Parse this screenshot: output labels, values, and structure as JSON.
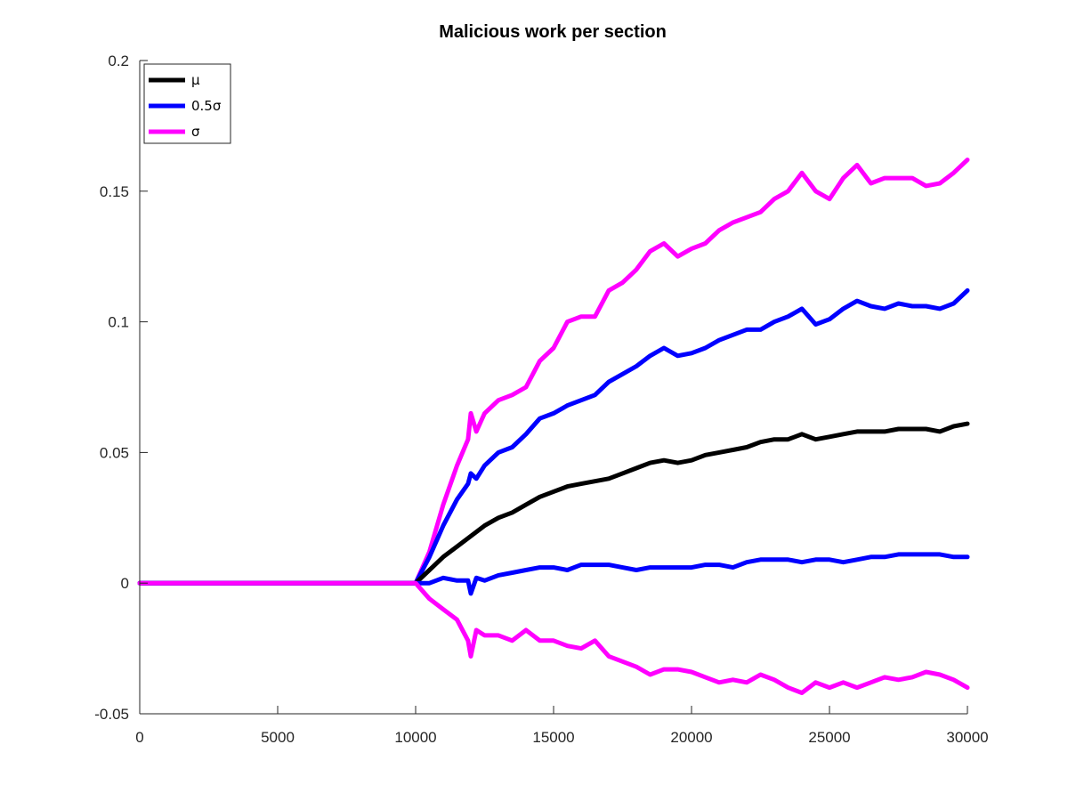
{
  "chart_data": {
    "type": "line",
    "title": "Malicious work per section",
    "xlabel": "",
    "ylabel": "",
    "xlim": [
      0,
      30000
    ],
    "ylim": [
      -0.05,
      0.2
    ],
    "xticks": [
      0,
      5000,
      10000,
      15000,
      20000,
      25000,
      30000
    ],
    "xtick_labels": [
      "0",
      "5000",
      "10000",
      "15000",
      "20000",
      "25000",
      "30000"
    ],
    "yticks": [
      -0.05,
      0,
      0.05,
      0.1,
      0.15,
      0.2
    ],
    "ytick_labels": [
      "-0.05",
      "0",
      "0.05",
      "0.1",
      "0.15",
      "0.2"
    ],
    "grid": false,
    "legend_position": "top-left",
    "legend": [
      {
        "label": "μ",
        "color": "#000000"
      },
      {
        "label": "0.5σ",
        "color": "#0000ff"
      },
      {
        "label": "σ",
        "color": "#ff00ff"
      }
    ],
    "series": [
      {
        "name": "σ",
        "color": "#ff00ff",
        "points": [
          [
            0,
            0
          ],
          [
            10000,
            0
          ],
          [
            10500,
            0.012
          ],
          [
            11000,
            0.03
          ],
          [
            11500,
            0.045
          ],
          [
            11900,
            0.055
          ],
          [
            12000,
            0.065
          ],
          [
            12200,
            0.058
          ],
          [
            12500,
            0.065
          ],
          [
            13000,
            0.07
          ],
          [
            13500,
            0.072
          ],
          [
            14000,
            0.075
          ],
          [
            14500,
            0.085
          ],
          [
            15000,
            0.09
          ],
          [
            15500,
            0.1
          ],
          [
            16000,
            0.102
          ],
          [
            16500,
            0.102
          ],
          [
            17000,
            0.112
          ],
          [
            17500,
            0.115
          ],
          [
            18000,
            0.12
          ],
          [
            18500,
            0.127
          ],
          [
            19000,
            0.13
          ],
          [
            19500,
            0.125
          ],
          [
            20000,
            0.128
          ],
          [
            20500,
            0.13
          ],
          [
            21000,
            0.135
          ],
          [
            21500,
            0.138
          ],
          [
            22000,
            0.14
          ],
          [
            22500,
            0.142
          ],
          [
            23000,
            0.147
          ],
          [
            23500,
            0.15
          ],
          [
            24000,
            0.157
          ],
          [
            24500,
            0.15
          ],
          [
            25000,
            0.147
          ],
          [
            25500,
            0.155
          ],
          [
            26000,
            0.16
          ],
          [
            26500,
            0.153
          ],
          [
            27000,
            0.155
          ],
          [
            27500,
            0.155
          ],
          [
            28000,
            0.155
          ],
          [
            28500,
            0.152
          ],
          [
            29000,
            0.153
          ],
          [
            29500,
            0.157
          ],
          [
            30000,
            0.162
          ]
        ]
      },
      {
        "name": "0.5σ",
        "color": "#0000ff",
        "points": [
          [
            0,
            0
          ],
          [
            10000,
            0
          ],
          [
            10500,
            0.01
          ],
          [
            11000,
            0.022
          ],
          [
            11500,
            0.032
          ],
          [
            11900,
            0.038
          ],
          [
            12000,
            0.042
          ],
          [
            12200,
            0.04
          ],
          [
            12500,
            0.045
          ],
          [
            13000,
            0.05
          ],
          [
            13500,
            0.052
          ],
          [
            14000,
            0.057
          ],
          [
            14500,
            0.063
          ],
          [
            15000,
            0.065
          ],
          [
            15500,
            0.068
          ],
          [
            16000,
            0.07
          ],
          [
            16500,
            0.072
          ],
          [
            17000,
            0.077
          ],
          [
            17500,
            0.08
          ],
          [
            18000,
            0.083
          ],
          [
            18500,
            0.087
          ],
          [
            19000,
            0.09
          ],
          [
            19500,
            0.087
          ],
          [
            20000,
            0.088
          ],
          [
            20500,
            0.09
          ],
          [
            21000,
            0.093
          ],
          [
            21500,
            0.095
          ],
          [
            22000,
            0.097
          ],
          [
            22500,
            0.097
          ],
          [
            23000,
            0.1
          ],
          [
            23500,
            0.102
          ],
          [
            24000,
            0.105
          ],
          [
            24500,
            0.099
          ],
          [
            25000,
            0.101
          ],
          [
            25500,
            0.105
          ],
          [
            26000,
            0.108
          ],
          [
            26500,
            0.106
          ],
          [
            27000,
            0.105
          ],
          [
            27500,
            0.107
          ],
          [
            28000,
            0.106
          ],
          [
            28500,
            0.106
          ],
          [
            29000,
            0.105
          ],
          [
            29500,
            0.107
          ],
          [
            30000,
            0.112
          ]
        ]
      },
      {
        "name": "μ",
        "color": "#000000",
        "points": [
          [
            0,
            0
          ],
          [
            10000,
            0
          ],
          [
            10500,
            0.005
          ],
          [
            11000,
            0.01
          ],
          [
            11500,
            0.014
          ],
          [
            12000,
            0.018
          ],
          [
            12500,
            0.022
          ],
          [
            13000,
            0.025
          ],
          [
            13500,
            0.027
          ],
          [
            14000,
            0.03
          ],
          [
            14500,
            0.033
          ],
          [
            15000,
            0.035
          ],
          [
            15500,
            0.037
          ],
          [
            16000,
            0.038
          ],
          [
            16500,
            0.039
          ],
          [
            17000,
            0.04
          ],
          [
            17500,
            0.042
          ],
          [
            18000,
            0.044
          ],
          [
            18500,
            0.046
          ],
          [
            19000,
            0.047
          ],
          [
            19500,
            0.046
          ],
          [
            20000,
            0.047
          ],
          [
            20500,
            0.049
          ],
          [
            21000,
            0.05
          ],
          [
            21500,
            0.051
          ],
          [
            22000,
            0.052
          ],
          [
            22500,
            0.054
          ],
          [
            23000,
            0.055
          ],
          [
            23500,
            0.055
          ],
          [
            24000,
            0.057
          ],
          [
            24500,
            0.055
          ],
          [
            25000,
            0.056
          ],
          [
            25500,
            0.057
          ],
          [
            26000,
            0.058
          ],
          [
            26500,
            0.058
          ],
          [
            27000,
            0.058
          ],
          [
            27500,
            0.059
          ],
          [
            28000,
            0.059
          ],
          [
            28500,
            0.059
          ],
          [
            29000,
            0.058
          ],
          [
            29500,
            0.06
          ],
          [
            30000,
            0.061
          ]
        ]
      },
      {
        "name": "0.5σ",
        "color": "#0000ff",
        "points": [
          [
            0,
            0
          ],
          [
            10000,
            0
          ],
          [
            10500,
            0.0
          ],
          [
            11000,
            0.002
          ],
          [
            11500,
            0.001
          ],
          [
            11900,
            0.001
          ],
          [
            12000,
            -0.004
          ],
          [
            12200,
            0.002
          ],
          [
            12500,
            0.001
          ],
          [
            13000,
            0.003
          ],
          [
            13500,
            0.004
          ],
          [
            14000,
            0.005
          ],
          [
            14500,
            0.006
          ],
          [
            15000,
            0.006
          ],
          [
            15500,
            0.005
          ],
          [
            16000,
            0.007
          ],
          [
            16500,
            0.007
          ],
          [
            17000,
            0.007
          ],
          [
            17500,
            0.006
          ],
          [
            18000,
            0.005
          ],
          [
            18500,
            0.006
          ],
          [
            19000,
            0.006
          ],
          [
            19500,
            0.006
          ],
          [
            20000,
            0.006
          ],
          [
            20500,
            0.007
          ],
          [
            21000,
            0.007
          ],
          [
            21500,
            0.006
          ],
          [
            22000,
            0.008
          ],
          [
            22500,
            0.009
          ],
          [
            23000,
            0.009
          ],
          [
            23500,
            0.009
          ],
          [
            24000,
            0.008
          ],
          [
            24500,
            0.009
          ],
          [
            25000,
            0.009
          ],
          [
            25500,
            0.008
          ],
          [
            26000,
            0.009
          ],
          [
            26500,
            0.01
          ],
          [
            27000,
            0.01
          ],
          [
            27500,
            0.011
          ],
          [
            28000,
            0.011
          ],
          [
            28500,
            0.011
          ],
          [
            29000,
            0.011
          ],
          [
            29500,
            0.01
          ],
          [
            30000,
            0.01
          ]
        ]
      },
      {
        "name": "σ",
        "color": "#ff00ff",
        "points": [
          [
            0,
            0
          ],
          [
            10000,
            0
          ],
          [
            10500,
            -0.006
          ],
          [
            11000,
            -0.01
          ],
          [
            11500,
            -0.014
          ],
          [
            11900,
            -0.022
          ],
          [
            12000,
            -0.028
          ],
          [
            12200,
            -0.018
          ],
          [
            12500,
            -0.02
          ],
          [
            13000,
            -0.02
          ],
          [
            13500,
            -0.022
          ],
          [
            14000,
            -0.018
          ],
          [
            14500,
            -0.022
          ],
          [
            15000,
            -0.022
          ],
          [
            15500,
            -0.024
          ],
          [
            16000,
            -0.025
          ],
          [
            16500,
            -0.022
          ],
          [
            17000,
            -0.028
          ],
          [
            17500,
            -0.03
          ],
          [
            18000,
            -0.032
          ],
          [
            18500,
            -0.035
          ],
          [
            19000,
            -0.033
          ],
          [
            19500,
            -0.033
          ],
          [
            20000,
            -0.034
          ],
          [
            20500,
            -0.036
          ],
          [
            21000,
            -0.038
          ],
          [
            21500,
            -0.037
          ],
          [
            22000,
            -0.038
          ],
          [
            22500,
            -0.035
          ],
          [
            23000,
            -0.037
          ],
          [
            23500,
            -0.04
          ],
          [
            24000,
            -0.042
          ],
          [
            24500,
            -0.038
          ],
          [
            25000,
            -0.04
          ],
          [
            25500,
            -0.038
          ],
          [
            26000,
            -0.04
          ],
          [
            26500,
            -0.038
          ],
          [
            27000,
            -0.036
          ],
          [
            27500,
            -0.037
          ],
          [
            28000,
            -0.036
          ],
          [
            28500,
            -0.034
          ],
          [
            29000,
            -0.035
          ],
          [
            29500,
            -0.037
          ],
          [
            30000,
            -0.04
          ]
        ]
      }
    ]
  }
}
